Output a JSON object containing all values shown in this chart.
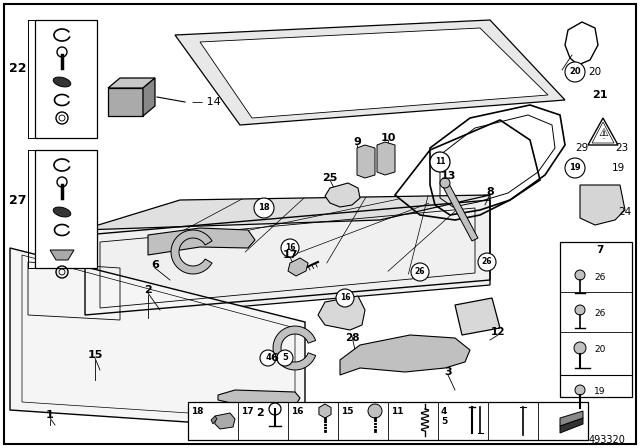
{
  "background_color": "#ffffff",
  "line_color": "#000000",
  "part_number": "493320",
  "gray_light": "#e8e8e8",
  "gray_mid": "#c0c0c0",
  "gray_dark": "#888888",
  "gray_fill": "#aaaaaa",
  "gray_box": "#999999"
}
